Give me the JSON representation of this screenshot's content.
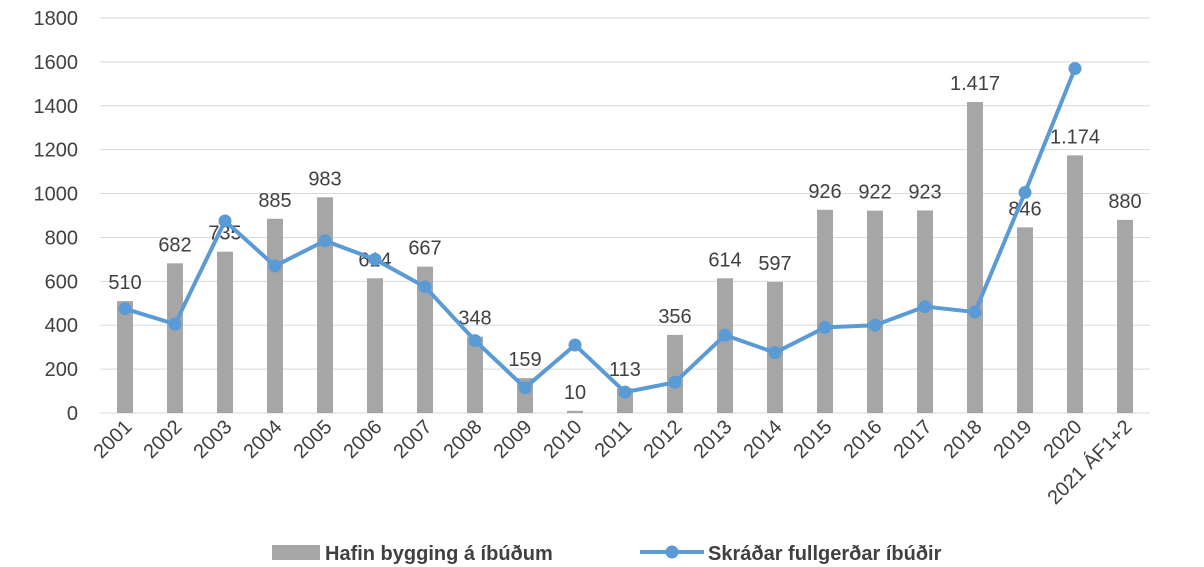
{
  "chart_data": {
    "type": "combo",
    "categories": [
      "2001",
      "2002",
      "2003",
      "2004",
      "2005",
      "2006",
      "2007",
      "2008",
      "2009",
      "2010",
      "2011",
      "2012",
      "2013",
      "2014",
      "2015",
      "2016",
      "2017",
      "2018",
      "2019",
      "2020",
      "2021 ÁF1+2"
    ],
    "series": [
      {
        "name": "Hafin bygging á íbúðum",
        "type": "bar",
        "color": "#a6a6a6",
        "values": [
          510,
          682,
          735,
          885,
          983,
          614,
          667,
          348,
          159,
          10,
          113,
          356,
          614,
          597,
          926,
          922,
          923,
          1417,
          846,
          1174,
          880
        ],
        "value_labels": [
          "510",
          "682",
          "735",
          "885",
          "983",
          "614",
          "667",
          "348",
          "159",
          "10",
          "113",
          "356",
          "614",
          "597",
          "926",
          "922",
          "923",
          "1.417",
          "846",
          "1.174",
          "880"
        ]
      },
      {
        "name": "Skráðar fullgerðar íbúðir",
        "type": "line",
        "color": "#5b9bd5",
        "values": [
          475,
          405,
          875,
          670,
          785,
          700,
          575,
          330,
          115,
          310,
          95,
          140,
          355,
          275,
          390,
          400,
          485,
          460,
          1005,
          1570,
          null
        ]
      }
    ],
    "ylim": [
      0,
      1800
    ],
    "yticks": [
      0,
      200,
      400,
      600,
      800,
      1000,
      1200,
      1400,
      1600,
      1800
    ],
    "grid": true,
    "legend": "bottom"
  }
}
